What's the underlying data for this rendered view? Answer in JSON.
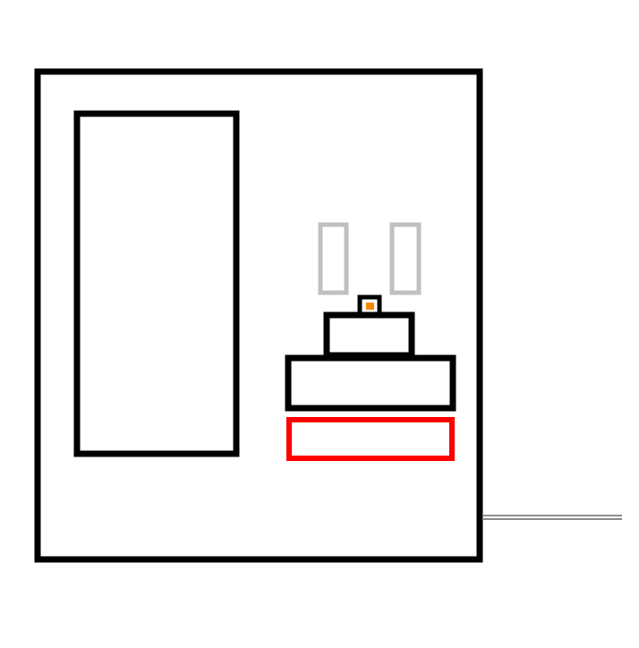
{
  "colors": {
    "background": "#ffffff",
    "outline": "#000000",
    "highlight": "#ff0000",
    "muted": "#c0c0c0",
    "accent": "#f58a0a",
    "connector": "#8c8c8c"
  },
  "components": [
    {
      "name": "outer-frame",
      "role": "container",
      "color": "outline"
    },
    {
      "name": "tall-panel",
      "role": "panel",
      "color": "outline"
    },
    {
      "name": "left-slot",
      "role": "slot",
      "color": "muted"
    },
    {
      "name": "right-slot",
      "role": "slot",
      "color": "muted"
    },
    {
      "name": "small-indicator",
      "role": "indicator",
      "color": "outline",
      "fill": "accent"
    },
    {
      "name": "upper-block",
      "role": "block",
      "color": "outline"
    },
    {
      "name": "lower-block",
      "role": "block",
      "color": "outline"
    },
    {
      "name": "highlighted-block",
      "role": "block",
      "color": "highlight"
    },
    {
      "name": "connector-line",
      "role": "connector",
      "color": "connector"
    }
  ]
}
